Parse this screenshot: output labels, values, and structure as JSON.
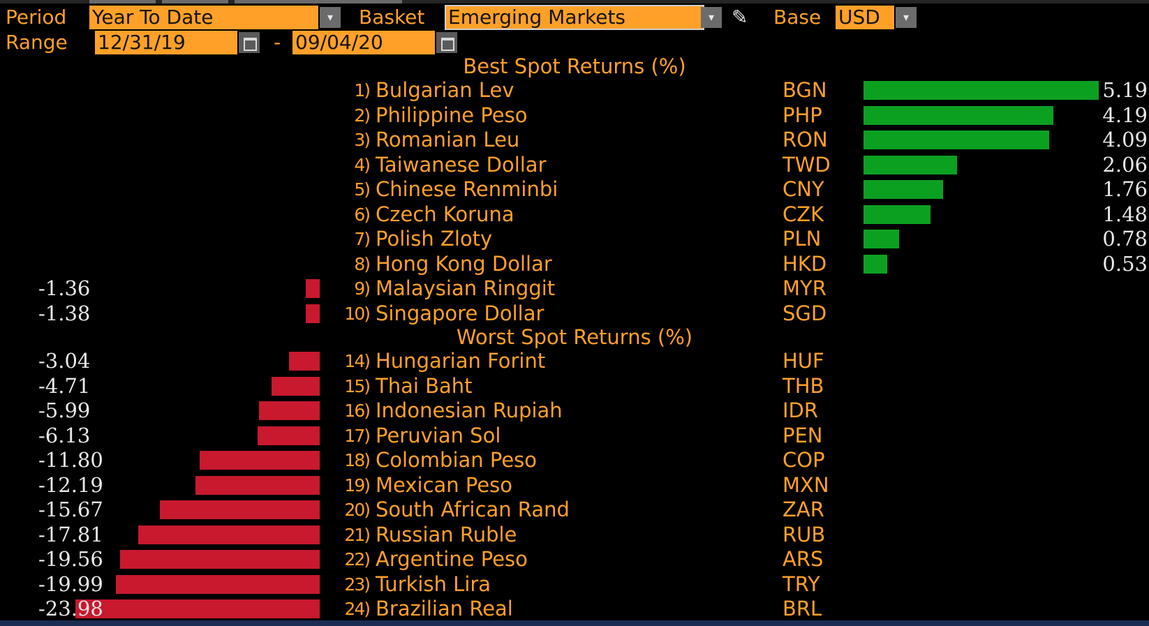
{
  "header": {
    "period_label": "Period",
    "period_value": "Year To Date",
    "basket_label": "Basket",
    "basket_value": "Emerging Markets",
    "base_label": "Base",
    "base_value": "USD",
    "range_label": "Range",
    "range_start": "12/31/19",
    "range_separator": "-",
    "range_end": "09/04/20",
    "dropdown_glyph": "▾",
    "edit_glyph": "✎"
  },
  "icons": {
    "dropdown": "chevron-down-icon",
    "edit": "pencil-icon",
    "calendar": "calendar-icon"
  },
  "colors": {
    "label": "#ffa028",
    "field_bg": "#ffa028",
    "positive_bar": "#0ca021",
    "negative_bar": "#c8192e",
    "value_text": "#e8e8e8",
    "background": "#000000"
  },
  "best": {
    "title": "Best Spot Returns (%)",
    "rows": [
      {
        "rank": "1)",
        "name": "Bulgarian Lev",
        "code": "BGN",
        "value": "5.19"
      },
      {
        "rank": "2)",
        "name": "Philippine Peso",
        "code": "PHP",
        "value": "4.19"
      },
      {
        "rank": "3)",
        "name": "Romanian Leu",
        "code": "RON",
        "value": "4.09"
      },
      {
        "rank": "4)",
        "name": "Taiwanese Dollar",
        "code": "TWD",
        "value": "2.06"
      },
      {
        "rank": "5)",
        "name": "Chinese Renminbi",
        "code": "CNY",
        "value": "1.76"
      },
      {
        "rank": "6)",
        "name": "Czech Koruna",
        "code": "CZK",
        "value": "1.48"
      },
      {
        "rank": "7)",
        "name": "Polish Zloty",
        "code": "PLN",
        "value": "0.78"
      },
      {
        "rank": "8)",
        "name": "Hong Kong Dollar",
        "code": "HKD",
        "value": "0.53"
      },
      {
        "rank": "9)",
        "name": "Malaysian Ringgit",
        "code": "MYR",
        "value": "-1.36"
      },
      {
        "rank": "10)",
        "name": "Singapore Dollar",
        "code": "SGD",
        "value": "-1.38"
      }
    ]
  },
  "worst": {
    "title": "Worst Spot Returns (%)",
    "rows": [
      {
        "rank": "14)",
        "name": "Hungarian Forint",
        "code": "HUF",
        "value": "-3.04"
      },
      {
        "rank": "15)",
        "name": "Thai Baht",
        "code": "THB",
        "value": "-4.71"
      },
      {
        "rank": "16)",
        "name": "Indonesian Rupiah",
        "code": "IDR",
        "value": "-5.99"
      },
      {
        "rank": "17)",
        "name": "Peruvian Sol",
        "code": "PEN",
        "value": "-6.13"
      },
      {
        "rank": "18)",
        "name": "Colombian Peso",
        "code": "COP",
        "value": "-11.80"
      },
      {
        "rank": "19)",
        "name": "Mexican Peso",
        "code": "MXN",
        "value": "-12.19"
      },
      {
        "rank": "20)",
        "name": "South African Rand",
        "code": "ZAR",
        "value": "-15.67"
      },
      {
        "rank": "21)",
        "name": "Russian Ruble",
        "code": "RUB",
        "value": "-17.81"
      },
      {
        "rank": "22)",
        "name": "Argentine Peso",
        "code": "ARS",
        "value": "-19.56"
      },
      {
        "rank": "23)",
        "name": "Turkish Lira",
        "code": "TRY",
        "value": "-19.99"
      },
      {
        "rank": "24)",
        "name": "Brazilian Real",
        "code": "BRL",
        "value": "-23.98"
      }
    ]
  }
}
